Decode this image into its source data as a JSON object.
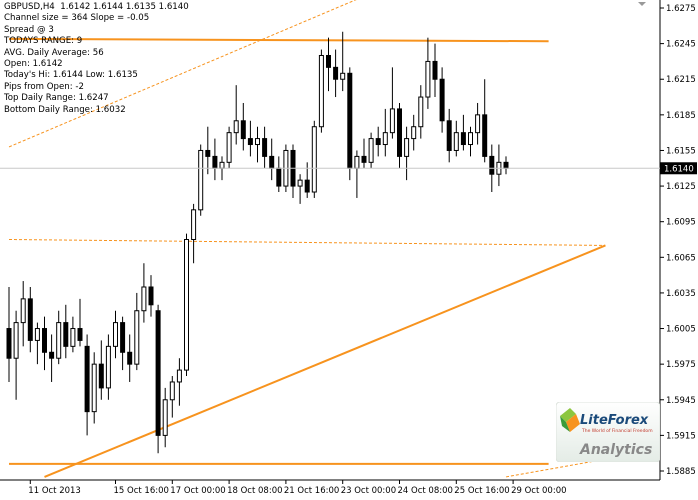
{
  "header": {
    "symbol": "GBPUSD,H4",
    "ohlc": "1.6142 1.6144 1.6135 1.6140"
  },
  "info_panel": [
    "Channel size = 364 Slope = -0.05",
    "Spread @ 3",
    "TODAYS RANGE: 9",
    "AVG. Daily Average: 56",
    "Open: 1.6142",
    "Today's Hi: 1.6144  Low: 1.6135",
    "Pips from Open: -2",
    "Top Daily Range: 1.6247",
    "Bottom Daily Range: 1.6032"
  ],
  "current_price_label": "1.6140",
  "logo": {
    "brand": "LiteForex",
    "tagline": "The World of Financial Freedom",
    "sub": "Analytics"
  },
  "colors": {
    "background": "#ffffff",
    "candles": "#000000",
    "channel": "#f7931e",
    "grid": "#c8c8c8",
    "current_price_box": "#000000"
  },
  "chart_data": {
    "type": "candlestick",
    "ylim": [
      1.5885,
      1.6275
    ],
    "y_ticks": [
      "1.6275",
      "1.6245",
      "1.6215",
      "1.6185",
      "1.6155",
      "1.6125",
      "1.6095",
      "1.6065",
      "1.6035",
      "1.6005",
      "1.5975",
      "1.5945",
      "1.5915",
      "1.5885"
    ],
    "x_tick_labels": [
      "11 Oct 2013",
      "15 Oct 16:00",
      "17 Oct 00:00",
      "18 Oct 08:00",
      "21 Oct 16:00",
      "23 Oct 00:00",
      "24 Oct 08:00",
      "25 Oct 16:00",
      "29 Oct 00:00"
    ],
    "x_tick_bar_index": [
      3,
      15,
      23,
      31,
      39,
      47,
      55,
      63,
      71
    ],
    "current_price": 1.614,
    "grid": true,
    "channel_lines": [
      {
        "style": "solid",
        "from": [
          0,
          1.6249
        ],
        "to": [
          76,
          1.6247
        ]
      },
      {
        "style": "solid",
        "from": [
          0,
          1.5891
        ],
        "to": [
          76,
          1.5891
        ]
      },
      {
        "style": "solid",
        "from": [
          5,
          1.588
        ],
        "to": [
          84,
          1.6075
        ]
      },
      {
        "style": "dashed",
        "from": [
          0,
          1.6158
        ],
        "to": [
          54,
          1.6295
        ]
      },
      {
        "style": "dashed",
        "from": [
          0,
          1.608
        ],
        "to": [
          84,
          1.6075
        ]
      },
      {
        "style": "dashed",
        "from": [
          70,
          1.588
        ],
        "to": [
          84,
          1.5895
        ]
      }
    ],
    "candles": [
      {
        "o": 1.6005,
        "h": 1.604,
        "l": 1.596,
        "c": 1.598
      },
      {
        "o": 1.598,
        "h": 1.602,
        "l": 1.5945,
        "c": 1.601
      },
      {
        "o": 1.601,
        "h": 1.6045,
        "l": 1.599,
        "c": 1.603
      },
      {
        "o": 1.603,
        "h": 1.604,
        "l": 1.5985,
        "c": 1.5995
      },
      {
        "o": 1.5995,
        "h": 1.601,
        "l": 1.5975,
        "c": 1.6005
      },
      {
        "o": 1.6005,
        "h": 1.6015,
        "l": 1.597,
        "c": 1.5985
      },
      {
        "o": 1.5985,
        "h": 1.6,
        "l": 1.596,
        "c": 1.598
      },
      {
        "o": 1.598,
        "h": 1.602,
        "l": 1.5975,
        "c": 1.601
      },
      {
        "o": 1.601,
        "h": 1.6025,
        "l": 1.598,
        "c": 1.599
      },
      {
        "o": 1.599,
        "h": 1.6015,
        "l": 1.5985,
        "c": 1.6005
      },
      {
        "o": 1.6005,
        "h": 1.603,
        "l": 1.599,
        "c": 1.5995
      },
      {
        "o": 1.599,
        "h": 1.6,
        "l": 1.5915,
        "c": 1.5935
      },
      {
        "o": 1.5935,
        "h": 1.5985,
        "l": 1.5925,
        "c": 1.5975
      },
      {
        "o": 1.5975,
        "h": 1.5995,
        "l": 1.5945,
        "c": 1.5955
      },
      {
        "o": 1.5955,
        "h": 1.6,
        "l": 1.5945,
        "c": 1.599
      },
      {
        "o": 1.599,
        "h": 1.602,
        "l": 1.598,
        "c": 1.601
      },
      {
        "o": 1.601,
        "h": 1.6015,
        "l": 1.597,
        "c": 1.5985
      },
      {
        "o": 1.5985,
        "h": 1.6,
        "l": 1.596,
        "c": 1.5975
      },
      {
        "o": 1.5975,
        "h": 1.6035,
        "l": 1.597,
        "c": 1.602
      },
      {
        "o": 1.602,
        "h": 1.606,
        "l": 1.601,
        "c": 1.604
      },
      {
        "o": 1.604,
        "h": 1.605,
        "l": 1.6015,
        "c": 1.6025
      },
      {
        "o": 1.602,
        "h": 1.6025,
        "l": 1.59,
        "c": 1.5915
      },
      {
        "o": 1.5915,
        "h": 1.5955,
        "l": 1.5905,
        "c": 1.5945
      },
      {
        "o": 1.5945,
        "h": 1.5965,
        "l": 1.593,
        "c": 1.596
      },
      {
        "o": 1.596,
        "h": 1.598,
        "l": 1.594,
        "c": 1.597
      },
      {
        "o": 1.597,
        "h": 1.6085,
        "l": 1.5965,
        "c": 1.608
      },
      {
        "o": 1.608,
        "h": 1.611,
        "l": 1.606,
        "c": 1.6105
      },
      {
        "o": 1.6105,
        "h": 1.616,
        "l": 1.61,
        "c": 1.6155
      },
      {
        "o": 1.6155,
        "h": 1.6175,
        "l": 1.6135,
        "c": 1.615
      },
      {
        "o": 1.615,
        "h": 1.6165,
        "l": 1.613,
        "c": 1.614
      },
      {
        "o": 1.614,
        "h": 1.615,
        "l": 1.613,
        "c": 1.6145
      },
      {
        "o": 1.6145,
        "h": 1.6175,
        "l": 1.614,
        "c": 1.617
      },
      {
        "o": 1.617,
        "h": 1.621,
        "l": 1.616,
        "c": 1.618
      },
      {
        "o": 1.618,
        "h": 1.6195,
        "l": 1.6155,
        "c": 1.6165
      },
      {
        "o": 1.6165,
        "h": 1.618,
        "l": 1.615,
        "c": 1.616
      },
      {
        "o": 1.616,
        "h": 1.6175,
        "l": 1.6145,
        "c": 1.6165
      },
      {
        "o": 1.6165,
        "h": 1.6175,
        "l": 1.614,
        "c": 1.615
      },
      {
        "o": 1.615,
        "h": 1.6165,
        "l": 1.613,
        "c": 1.614
      },
      {
        "o": 1.614,
        "h": 1.615,
        "l": 1.612,
        "c": 1.6125
      },
      {
        "o": 1.6125,
        "h": 1.616,
        "l": 1.612,
        "c": 1.6155
      },
      {
        "o": 1.6155,
        "h": 1.616,
        "l": 1.6115,
        "c": 1.6125
      },
      {
        "o": 1.6125,
        "h": 1.6135,
        "l": 1.611,
        "c": 1.613
      },
      {
        "o": 1.613,
        "h": 1.6145,
        "l": 1.6115,
        "c": 1.612
      },
      {
        "o": 1.612,
        "h": 1.618,
        "l": 1.6115,
        "c": 1.6175
      },
      {
        "o": 1.6175,
        "h": 1.624,
        "l": 1.617,
        "c": 1.6235
      },
      {
        "o": 1.6235,
        "h": 1.625,
        "l": 1.6205,
        "c": 1.6225
      },
      {
        "o": 1.6225,
        "h": 1.624,
        "l": 1.62,
        "c": 1.6215
      },
      {
        "o": 1.6215,
        "h": 1.6255,
        "l": 1.6205,
        "c": 1.622
      },
      {
        "o": 1.622,
        "h": 1.6225,
        "l": 1.613,
        "c": 1.614
      },
      {
        "o": 1.614,
        "h": 1.6155,
        "l": 1.6115,
        "c": 1.615
      },
      {
        "o": 1.615,
        "h": 1.6165,
        "l": 1.614,
        "c": 1.6145
      },
      {
        "o": 1.6145,
        "h": 1.617,
        "l": 1.614,
        "c": 1.6165
      },
      {
        "o": 1.6165,
        "h": 1.6175,
        "l": 1.615,
        "c": 1.616
      },
      {
        "o": 1.616,
        "h": 1.619,
        "l": 1.615,
        "c": 1.617
      },
      {
        "o": 1.617,
        "h": 1.6225,
        "l": 1.6165,
        "c": 1.619
      },
      {
        "o": 1.619,
        "h": 1.6195,
        "l": 1.614,
        "c": 1.615
      },
      {
        "o": 1.615,
        "h": 1.6175,
        "l": 1.613,
        "c": 1.6165
      },
      {
        "o": 1.6165,
        "h": 1.6185,
        "l": 1.6155,
        "c": 1.6175
      },
      {
        "o": 1.6175,
        "h": 1.621,
        "l": 1.6165,
        "c": 1.62
      },
      {
        "o": 1.62,
        "h": 1.625,
        "l": 1.619,
        "c": 1.623
      },
      {
        "o": 1.623,
        "h": 1.6245,
        "l": 1.62,
        "c": 1.6215
      },
      {
        "o": 1.6215,
        "h": 1.6225,
        "l": 1.617,
        "c": 1.618
      },
      {
        "o": 1.618,
        "h": 1.619,
        "l": 1.6145,
        "c": 1.6155
      },
      {
        "o": 1.6155,
        "h": 1.618,
        "l": 1.615,
        "c": 1.617
      },
      {
        "o": 1.617,
        "h": 1.6185,
        "l": 1.6155,
        "c": 1.616
      },
      {
        "o": 1.616,
        "h": 1.6175,
        "l": 1.615,
        "c": 1.617
      },
      {
        "o": 1.617,
        "h": 1.6195,
        "l": 1.616,
        "c": 1.6185
      },
      {
        "o": 1.6185,
        "h": 1.6215,
        "l": 1.6145,
        "c": 1.615
      },
      {
        "o": 1.615,
        "h": 1.616,
        "l": 1.612,
        "c": 1.6135
      },
      {
        "o": 1.6135,
        "h": 1.616,
        "l": 1.6125,
        "c": 1.6145
      },
      {
        "o": 1.6145,
        "h": 1.615,
        "l": 1.6135,
        "c": 1.614
      }
    ]
  }
}
